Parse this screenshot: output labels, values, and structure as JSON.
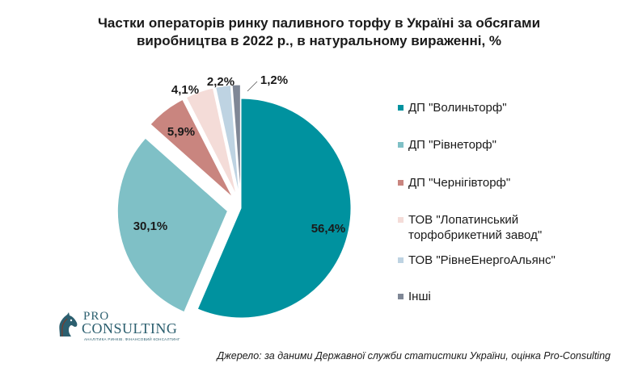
{
  "chart_data": {
    "type": "pie",
    "title": [
      "Частки операторів ринку паливного торфу в Україні за обсягами",
      "виробництва в 2022 р., в натуральному вираженні, %"
    ],
    "slices": [
      {
        "name": "ДП \"Волиньторф\"",
        "value": 56.4,
        "label": "56,4%",
        "color": "#00929f"
      },
      {
        "name": "ДП \"Рівнеторф\"",
        "value": 30.1,
        "label": "30,1%",
        "color": "#7fc0c6"
      },
      {
        "name": "ДП \"Чернігівторф\"",
        "value": 5.9,
        "label": "5,9%",
        "color": "#c9857f"
      },
      {
        "name": "ТОВ \"Лопатинський торфобрикетний завод\"",
        "value": 4.1,
        "label": "4,1%",
        "color": "#f4dcd8"
      },
      {
        "name": "ТОВ \"РівнеЕнергоАльянс\"",
        "value": 2.2,
        "label": "2,2%",
        "color": "#bed3e2"
      },
      {
        "name": "Інші",
        "value": 1.2,
        "label": "1,2%",
        "color": "#7f8796"
      }
    ],
    "legend_position": "right"
  },
  "source": "Джерело: за даними Державної служби статистики України, оцінка Pro-Consulting",
  "logo": {
    "pro": "PRO",
    "consulting": "CONSULTING",
    "tagline": "АНАЛІТИКА РИНКІВ. ФІНАНСОВИЙ КОНСАЛТИНГ"
  }
}
